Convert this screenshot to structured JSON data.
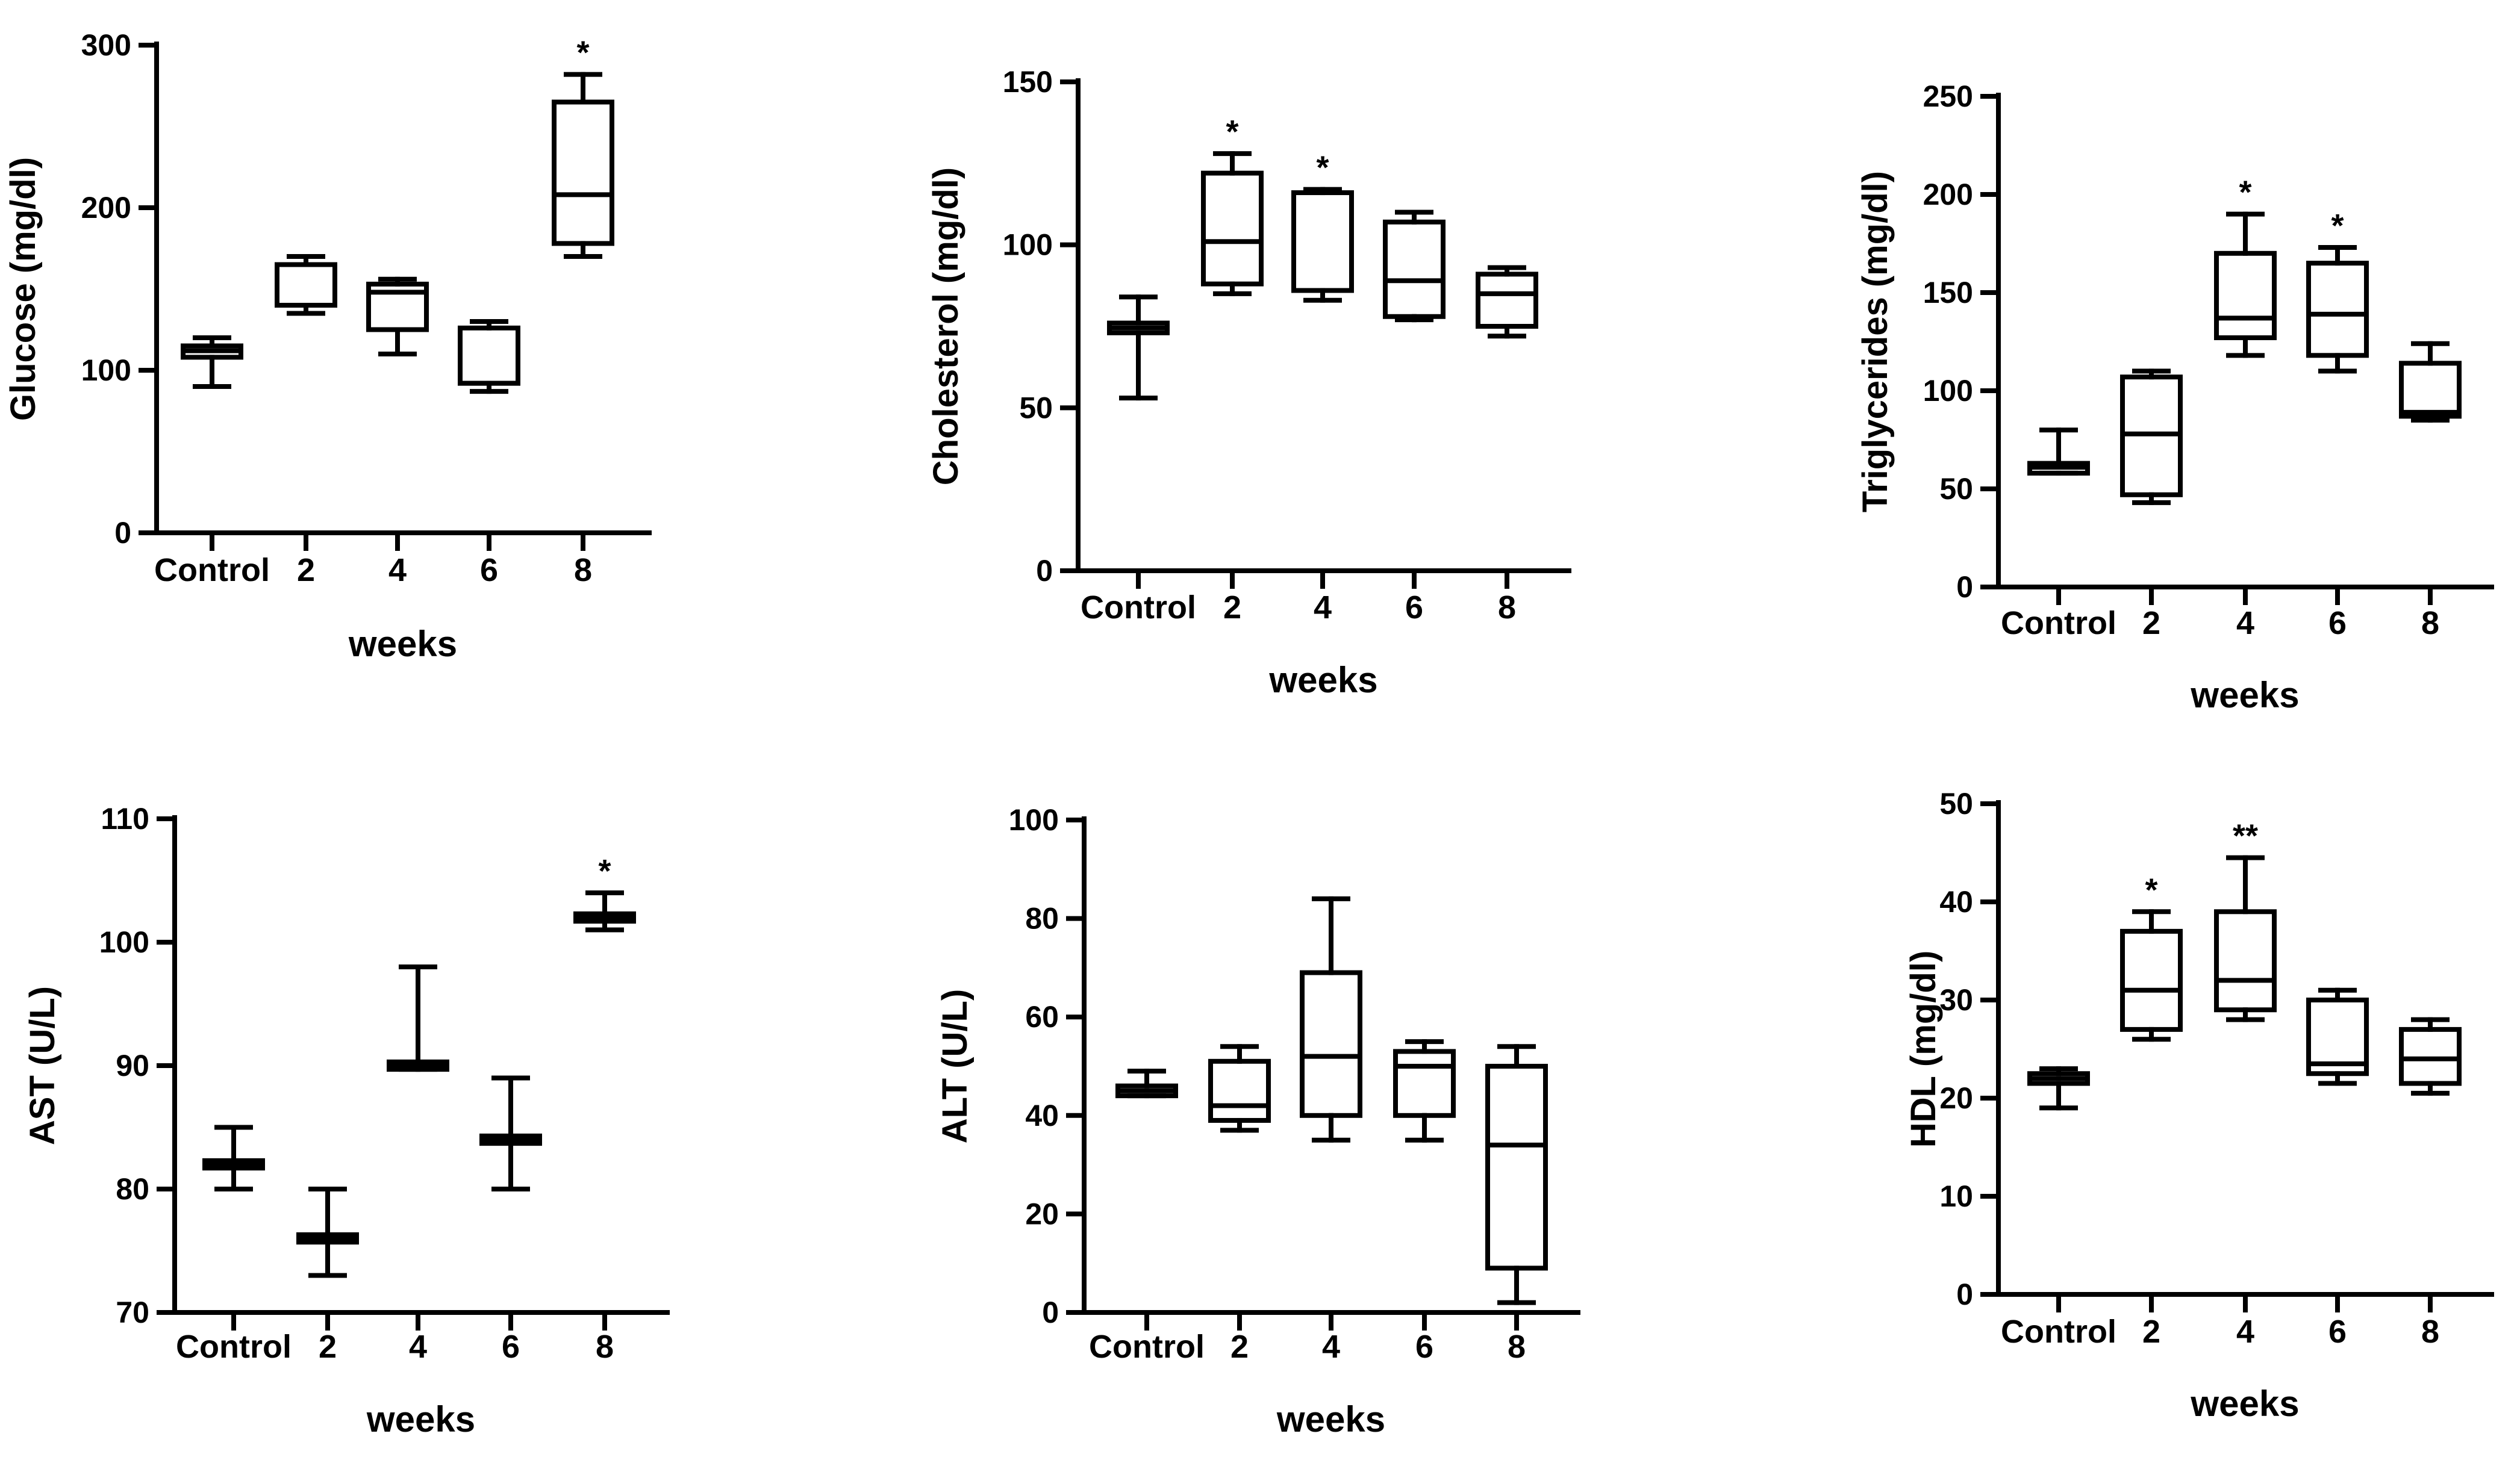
{
  "colors": {
    "ink": "#000000",
    "background": "#ffffff"
  },
  "chart_data": [
    {
      "type": "box",
      "title": "",
      "xlabel": "weeks",
      "ylabel": "Glucose (mg/dl)",
      "categories": [
        "Control",
        "2",
        "4",
        "6",
        "8"
      ],
      "ylim": [
        0,
        300
      ],
      "yticks": [
        "0",
        "100",
        "200",
        "300"
      ],
      "grid": false,
      "boxes": [
        {
          "min": 90,
          "q1": 108,
          "median": 112,
          "q3": 115,
          "max": 120
        },
        {
          "min": 135,
          "q1": 140,
          "median": 140,
          "q3": 165,
          "max": 170
        },
        {
          "min": 110,
          "q1": 125,
          "median": 148,
          "q3": 153,
          "max": 156
        },
        {
          "min": 87,
          "q1": 92,
          "median": 92,
          "q3": 126,
          "max": 130
        },
        {
          "min": 170,
          "q1": 178,
          "median": 208,
          "q3": 265,
          "max": 282
        }
      ],
      "annotations": [
        "",
        "",
        "",
        "",
        "*"
      ]
    },
    {
      "type": "box",
      "title": "",
      "xlabel": "weeks",
      "ylabel": "Cholesterol (mg/dl)",
      "categories": [
        "Control",
        "2",
        "4",
        "6",
        "8"
      ],
      "ylim": [
        0,
        150
      ],
      "yticks": [
        "0",
        "50",
        "100",
        "150"
      ],
      "grid": false,
      "boxes": [
        {
          "min": 53,
          "q1": 73,
          "median": 74.5,
          "q3": 76,
          "max": 84
        },
        {
          "min": 85,
          "q1": 88,
          "median": 101,
          "q3": 122,
          "max": 128
        },
        {
          "min": 83,
          "q1": 86,
          "median": 86,
          "q3": 116,
          "max": 117
        },
        {
          "min": 77,
          "q1": 78,
          "median": 89,
          "q3": 107,
          "max": 110
        },
        {
          "min": 72,
          "q1": 75,
          "median": 85,
          "q3": 91,
          "max": 93
        }
      ],
      "annotations": [
        "",
        "*",
        "*",
        "",
        ""
      ]
    },
    {
      "type": "box",
      "title": "",
      "xlabel": "weeks",
      "ylabel": "Triglycerides (mg/dl)",
      "categories": [
        "Control",
        "2",
        "4",
        "6",
        "8"
      ],
      "ylim": [
        0,
        250
      ],
      "yticks": [
        "0",
        "50",
        "100",
        "150",
        "200",
        "250"
      ],
      "grid": false,
      "boxes": [
        {
          "min": 58,
          "q1": 58,
          "median": 61,
          "q3": 63,
          "max": 80
        },
        {
          "min": 43,
          "q1": 47,
          "median": 78,
          "q3": 107,
          "max": 110
        },
        {
          "min": 118,
          "q1": 127,
          "median": 137,
          "q3": 170,
          "max": 190
        },
        {
          "min": 110,
          "q1": 118,
          "median": 139,
          "q3": 165,
          "max": 173
        },
        {
          "min": 85,
          "q1": 87,
          "median": 89,
          "q3": 114,
          "max": 124
        }
      ],
      "annotations": [
        "",
        "",
        "*",
        "*",
        ""
      ]
    },
    {
      "type": "box",
      "title": "",
      "xlabel": "weeks",
      "ylabel": "AST (U/L)",
      "categories": [
        "Control",
        "2",
        "4",
        "6",
        "8"
      ],
      "ylim": [
        70,
        110
      ],
      "yticks": [
        "70",
        "80",
        "90",
        "100",
        "110"
      ],
      "grid": false,
      "boxes": [
        {
          "min": 80,
          "q1": 81.7,
          "median": 82,
          "q3": 82.3,
          "max": 85
        },
        {
          "min": 73,
          "q1": 75.7,
          "median": 76,
          "q3": 76.3,
          "max": 80
        },
        {
          "min": 89.7,
          "q1": 89.7,
          "median": 90,
          "q3": 90.3,
          "max": 98
        },
        {
          "min": 80,
          "q1": 83.7,
          "median": 84,
          "q3": 84.3,
          "max": 89
        },
        {
          "min": 101,
          "q1": 101.7,
          "median": 102,
          "q3": 102.3,
          "max": 104
        }
      ],
      "annotations": [
        "",
        "",
        "",
        "",
        "*"
      ]
    },
    {
      "type": "box",
      "title": "",
      "xlabel": "weeks",
      "ylabel": "ALT (U/L)",
      "categories": [
        "Control",
        "2",
        "4",
        "6",
        "8"
      ],
      "ylim": [
        0,
        100
      ],
      "yticks": [
        "0",
        "20",
        "40",
        "60",
        "80",
        "100"
      ],
      "grid": false,
      "boxes": [
        {
          "min": 44,
          "q1": 44,
          "median": 45,
          "q3": 46,
          "max": 49
        },
        {
          "min": 37,
          "q1": 39,
          "median": 42,
          "q3": 51,
          "max": 54
        },
        {
          "min": 35,
          "q1": 40,
          "median": 52,
          "q3": 69,
          "max": 84
        },
        {
          "min": 35,
          "q1": 40,
          "median": 50,
          "q3": 53,
          "max": 55
        },
        {
          "min": 2,
          "q1": 9,
          "median": 34,
          "q3": 50,
          "max": 54
        }
      ],
      "annotations": [
        "",
        "",
        "",
        "",
        ""
      ]
    },
    {
      "type": "box",
      "title": "",
      "xlabel": "weeks",
      "ylabel": "HDL (mg/dl)",
      "categories": [
        "Control",
        "2",
        "4",
        "6",
        "8"
      ],
      "ylim": [
        0,
        50
      ],
      "yticks": [
        "0",
        "10",
        "20",
        "30",
        "40",
        "50"
      ],
      "grid": false,
      "boxes": [
        {
          "min": 19,
          "q1": 21.5,
          "median": 22,
          "q3": 22.5,
          "max": 23
        },
        {
          "min": 26,
          "q1": 27,
          "median": 31,
          "q3": 37,
          "max": 39
        },
        {
          "min": 28,
          "q1": 29,
          "median": 32,
          "q3": 39,
          "max": 44.5
        },
        {
          "min": 21.5,
          "q1": 22.5,
          "median": 23.5,
          "q3": 30,
          "max": 31
        },
        {
          "min": 20.5,
          "q1": 21.5,
          "median": 24,
          "q3": 27,
          "max": 28
        }
      ],
      "annotations": [
        "",
        "*",
        "**",
        "",
        ""
      ]
    }
  ]
}
